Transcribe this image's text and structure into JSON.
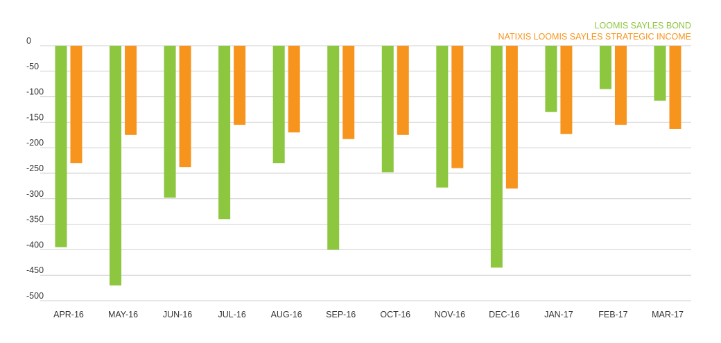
{
  "chart_data": {
    "type": "bar",
    "title": "",
    "xlabel": "",
    "ylabel": "",
    "categories": [
      "APR-16",
      "MAY-16",
      "JUN-16",
      "JUL-16",
      "AUG-16",
      "SEP-16",
      "OCT-16",
      "NOV-16",
      "DEC-16",
      "JAN-17",
      "FEB-17",
      "MAR-17"
    ],
    "series": [
      {
        "name": "LOOMIS SAYLES BOND",
        "color": "#8dc63f",
        "values": [
          -395,
          -470,
          -298,
          -340,
          -230,
          -400,
          -248,
          -278,
          -435,
          -130,
          -85,
          -108
        ]
      },
      {
        "name": "NATIXIS LOOMIS SAYLES STRATEGIC INCOME",
        "color": "#f7941d",
        "values": [
          -230,
          -175,
          -238,
          -155,
          -170,
          -183,
          -175,
          -240,
          -280,
          -173,
          -155,
          -163
        ]
      }
    ],
    "ylim": [
      -500,
      0
    ],
    "yticks": [
      0,
      -50,
      -100,
      -150,
      -200,
      -250,
      -300,
      -350,
      -400,
      -450,
      -500
    ],
    "grid": true,
    "legend_position": "top-right"
  }
}
